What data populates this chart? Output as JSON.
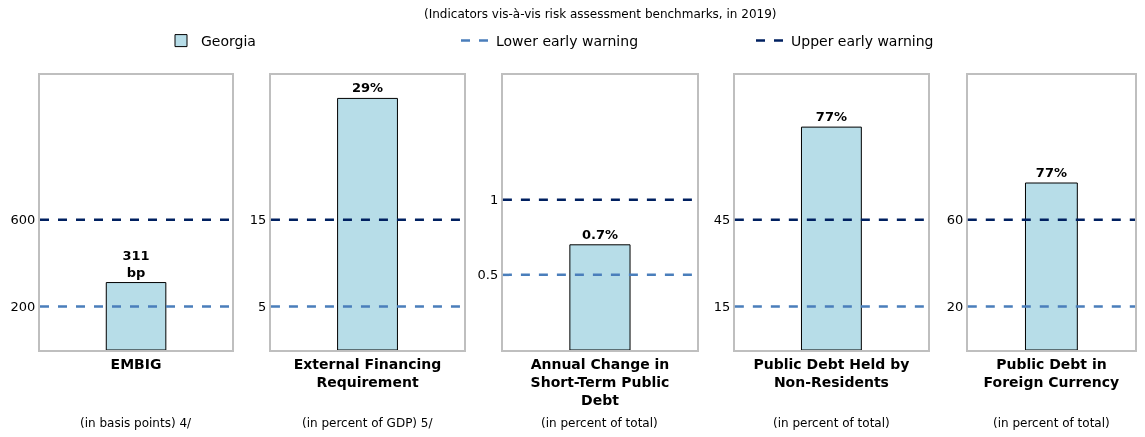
{
  "chart_data": [
    {
      "type": "bar",
      "legend": "top",
      "categories": [
        "EMBIG"
      ],
      "xlabel": "(in basis points) 4/",
      "series": [
        {
          "name": "Georgia",
          "color": "#b7dde8",
          "values": [
            311
          ],
          "value_labels": [
            "311\nbp"
          ]
        }
      ],
      "ylim": [
        0,
        1268
      ],
      "yticks": [
        200,
        600
      ],
      "ref_lines": [
        {
          "axis": "y",
          "value": 200,
          "label": "Lower early warning",
          "color": "#4a7ebb",
          "line_style": "dashed"
        },
        {
          "axis": "y",
          "value": 600,
          "label": "Upper early warning",
          "color": "#002060",
          "line_style": "dashed"
        }
      ]
    },
    {
      "type": "bar",
      "categories": [
        "External Financing Requirement"
      ],
      "xlabel": "(in percent of GDP) 5/",
      "series": [
        {
          "color": "#b7dde8",
          "values": [
            29
          ],
          "value_labels": [
            "29%"
          ]
        }
      ],
      "ylim": [
        0,
        31.7
      ],
      "yticks": [
        5,
        15
      ],
      "ref_lines": [
        {
          "axis": "y",
          "value": 5,
          "color": "#4a7ebb",
          "line_style": "dashed"
        },
        {
          "axis": "y",
          "value": 15,
          "color": "#002060",
          "line_style": "dashed"
        }
      ]
    },
    {
      "type": "bar",
      "title": "(Indicators vis-à-vis risk assessment benchmarks, in 2019)",
      "categories": [
        "Annual Change in Short-Term Public Debt"
      ],
      "xlabel": "(in percent of total)",
      "series": [
        {
          "color": "#b7dde8",
          "values": [
            0.7
          ],
          "value_labels": [
            "0.7%"
          ]
        }
      ],
      "ylim": [
        0,
        1.83
      ],
      "yticks": [
        0.5,
        1
      ],
      "ref_lines": [
        {
          "axis": "y",
          "value": 0.5,
          "color": "#4a7ebb",
          "line_style": "dashed"
        },
        {
          "axis": "y",
          "value": 1,
          "color": "#002060",
          "line_style": "dashed"
        }
      ]
    },
    {
      "type": "bar",
      "categories": [
        "Public Debt Held by Non-Residents"
      ],
      "xlabel": "(in percent of total)",
      "series": [
        {
          "color": "#b7dde8",
          "values": [
            77
          ],
          "value_labels": [
            "77%"
          ]
        }
      ],
      "ylim": [
        0,
        95
      ],
      "yticks": [
        15,
        45
      ],
      "ref_lines": [
        {
          "axis": "y",
          "value": 15,
          "color": "#4a7ebb",
          "line_style": "dashed"
        },
        {
          "axis": "y",
          "value": 45,
          "color": "#002060",
          "line_style": "dashed"
        }
      ]
    },
    {
      "type": "bar",
      "categories": [
        "Public Debt in Foreign Currency"
      ],
      "xlabel": "(in percent of total)",
      "series": [
        {
          "color": "#b7dde8",
          "values": [
            77
          ],
          "value_labels": [
            "77%"
          ]
        }
      ],
      "ylim": [
        0,
        126.8
      ],
      "yticks": [
        20,
        60
      ],
      "ref_lines": [
        {
          "axis": "y",
          "value": 20,
          "color": "#4a7ebb",
          "line_style": "dashed"
        },
        {
          "axis": "y",
          "value": 60,
          "color": "#002060",
          "line_style": "dashed"
        }
      ]
    }
  ]
}
